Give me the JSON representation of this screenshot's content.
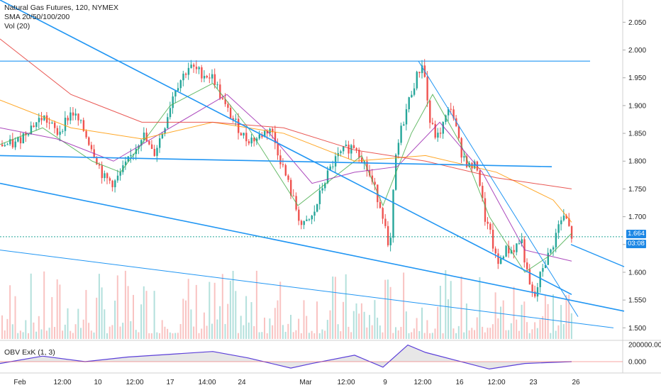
{
  "legend": {
    "symbol": "Natural Gas Futures, 120, NYMEX",
    "sma": "SMA 20/50/100/200",
    "vol": "Vol (20)",
    "obv": "OBV ExK (1, 3)"
  },
  "price_tag": {
    "last": "1.664",
    "countdown": "03:08",
    "color": "#1e88e5"
  },
  "colors": {
    "up": "#26a69a",
    "down": "#ef5350",
    "trend": "#2196f3",
    "sma20": "#4caf50",
    "sma50": "#9c27b0",
    "sma100": "#ff9800",
    "sma200": "#e53935",
    "obv": "#5b3fd9"
  },
  "chart_data": {
    "type": "candlestick",
    "y_axis": {
      "ticks": [
        "2.050",
        "2.000",
        "1.950",
        "1.900",
        "1.850",
        "1.800",
        "1.750",
        "1.700",
        "1.650",
        "1.600",
        "1.550",
        "1.500"
      ],
      "range": [
        1.48,
        2.09
      ]
    },
    "x_axis": {
      "ticks": [
        "Feb",
        "12:00",
        "10",
        "12:00",
        "17",
        "14:00",
        "24",
        "Mar",
        "12:00",
        "9",
        "12:00",
        "16",
        "12:00",
        "23",
        "26"
      ]
    },
    "obv_axis": {
      "ticks": [
        "200000.000",
        "0.000"
      ]
    },
    "price_anchors": [
      [
        0,
        1.83
      ],
      [
        20,
        1.83
      ],
      [
        40,
        1.86
      ],
      [
        60,
        1.88
      ],
      [
        80,
        1.85
      ],
      [
        100,
        1.89
      ],
      [
        115,
        1.86
      ],
      [
        130,
        1.82
      ],
      [
        145,
        1.77
      ],
      [
        160,
        1.76
      ],
      [
        180,
        1.8
      ],
      [
        200,
        1.85
      ],
      [
        215,
        1.81
      ],
      [
        230,
        1.86
      ],
      [
        245,
        1.93
      ],
      [
        265,
        1.97
      ],
      [
        280,
        1.96
      ],
      [
        300,
        1.95
      ],
      [
        315,
        1.9
      ],
      [
        330,
        1.87
      ],
      [
        345,
        1.84
      ],
      [
        360,
        1.84
      ],
      [
        380,
        1.86
      ],
      [
        395,
        1.8
      ],
      [
        410,
        1.74
      ],
      [
        425,
        1.68
      ],
      [
        440,
        1.7
      ],
      [
        455,
        1.76
      ],
      [
        470,
        1.8
      ],
      [
        485,
        1.82
      ],
      [
        500,
        1.83
      ],
      [
        515,
        1.79
      ],
      [
        530,
        1.74
      ],
      [
        540,
        1.7
      ],
      [
        548,
        1.62
      ],
      [
        556,
        1.8
      ],
      [
        565,
        1.86
      ],
      [
        580,
        1.93
      ],
      [
        595,
        1.98
      ],
      [
        605,
        1.87
      ],
      [
        615,
        1.84
      ],
      [
        625,
        1.87
      ],
      [
        635,
        1.9
      ],
      [
        648,
        1.82
      ],
      [
        660,
        1.79
      ],
      [
        672,
        1.79
      ],
      [
        682,
        1.7
      ],
      [
        692,
        1.66
      ],
      [
        700,
        1.61
      ],
      [
        710,
        1.64
      ],
      [
        722,
        1.64
      ],
      [
        734,
        1.66
      ],
      [
        744,
        1.58
      ],
      [
        752,
        1.55
      ],
      [
        764,
        1.61
      ],
      [
        776,
        1.64
      ],
      [
        788,
        1.69
      ],
      [
        796,
        1.7
      ],
      [
        806,
        1.66
      ]
    ],
    "series": [
      {
        "name": "SMA 20",
        "points": [
          [
            0,
            1.83
          ],
          [
            60,
            1.86
          ],
          [
            130,
            1.8
          ],
          [
            170,
            1.78
          ],
          [
            240,
            1.9
          ],
          [
            300,
            1.94
          ],
          [
            350,
            1.86
          ],
          [
            420,
            1.72
          ],
          [
            470,
            1.77
          ],
          [
            510,
            1.81
          ],
          [
            540,
            1.72
          ],
          [
            580,
            1.85
          ],
          [
            610,
            1.92
          ],
          [
            650,
            1.83
          ],
          [
            690,
            1.7
          ],
          [
            740,
            1.6
          ],
          [
            775,
            1.63
          ],
          [
            806,
            1.67
          ]
        ]
      },
      {
        "name": "SMA 50",
        "points": [
          [
            0,
            1.86
          ],
          [
            80,
            1.84
          ],
          [
            160,
            1.8
          ],
          [
            240,
            1.86
          ],
          [
            320,
            1.92
          ],
          [
            380,
            1.85
          ],
          [
            440,
            1.76
          ],
          [
            500,
            1.78
          ],
          [
            560,
            1.79
          ],
          [
            620,
            1.87
          ],
          [
            680,
            1.78
          ],
          [
            740,
            1.64
          ],
          [
            806,
            1.62
          ]
        ]
      },
      {
        "name": "SMA 100",
        "points": [
          [
            0,
            1.91
          ],
          [
            100,
            1.86
          ],
          [
            200,
            1.84
          ],
          [
            300,
            1.87
          ],
          [
            400,
            1.85
          ],
          [
            500,
            1.8
          ],
          [
            600,
            1.81
          ],
          [
            700,
            1.78
          ],
          [
            780,
            1.73
          ],
          [
            806,
            1.69
          ]
        ]
      },
      {
        "name": "SMA 200",
        "points": [
          [
            0,
            2.02
          ],
          [
            100,
            1.92
          ],
          [
            200,
            1.87
          ],
          [
            300,
            1.87
          ],
          [
            400,
            1.86
          ],
          [
            500,
            1.82
          ],
          [
            600,
            1.8
          ],
          [
            700,
            1.77
          ],
          [
            806,
            1.75
          ]
        ]
      }
    ],
    "trendlines": [
      [
        [
          0,
          2.09
        ],
        [
          806,
          1.56
        ]
      ],
      [
        [
          0,
          1.81
        ],
        [
          778,
          1.79
        ]
      ],
      [
        [
          0,
          1.98
        ],
        [
          832,
          1.98
        ]
      ],
      [
        [
          0,
          1.76
        ],
        [
          880,
          1.53
        ]
      ],
      [
        [
          0,
          1.64
        ],
        [
          865,
          1.5
        ]
      ],
      [
        [
          590,
          1.98
        ],
        [
          815,
          1.52
        ]
      ],
      [
        [
          805,
          1.65
        ],
        [
          880,
          1.61
        ]
      ]
    ],
    "obv": [
      [
        0,
        -0.1
      ],
      [
        60,
        0.3
      ],
      [
        120,
        0.0
      ],
      [
        180,
        0.25
      ],
      [
        240,
        0.4
      ],
      [
        300,
        0.55
      ],
      [
        350,
        0.2
      ],
      [
        410,
        -0.35
      ],
      [
        440,
        -0.1
      ],
      [
        500,
        0.35
      ],
      [
        540,
        -0.3
      ],
      [
        575,
        0.9
      ],
      [
        600,
        0.5
      ],
      [
        640,
        0.1
      ],
      [
        690,
        -0.4
      ],
      [
        740,
        -0.1
      ],
      [
        806,
        0.0
      ]
    ]
  }
}
